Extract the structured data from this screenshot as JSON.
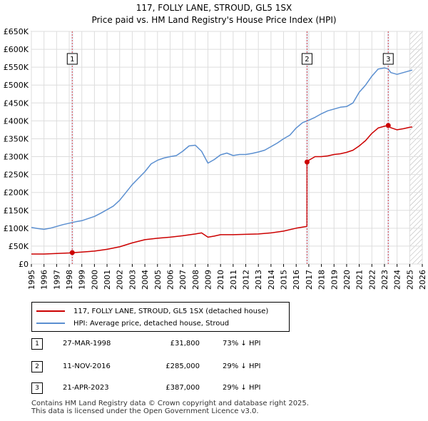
{
  "title": "117, FOLLY LANE, STROUD, GL5 1SX",
  "subtitle": "Price paid vs. HM Land Registry's House Price Index (HPI)",
  "colors": {
    "price": "#cc0000",
    "hpi": "#5b8fd0",
    "band": "#e6ecf7",
    "grid": "#dddddd"
  },
  "legend": [
    {
      "label": "117, FOLLY LANE, STROUD, GL5 1SX (detached house)",
      "color": "#cc0000"
    },
    {
      "label": "HPI: Average price, detached house, Stroud",
      "color": "#5b8fd0"
    }
  ],
  "sales": [
    {
      "num": "1",
      "date": "27-MAR-1998",
      "price": "£31,800",
      "hpi": "73% ↓ HPI"
    },
    {
      "num": "2",
      "date": "11-NOV-2016",
      "price": "£285,000",
      "hpi": "29% ↓ HPI"
    },
    {
      "num": "3",
      "date": "21-APR-2023",
      "price": "£387,000",
      "hpi": "29% ↓ HPI"
    }
  ],
  "footer": {
    "line1": "Contains HM Land Registry data © Crown copyright and database right 2025.",
    "line2": "This data is licensed under the Open Government Licence v3.0."
  },
  "chart_data": {
    "type": "line",
    "title": "Price paid vs. HM Land Registry's House Price Index (HPI)",
    "xlim": [
      1995,
      2026
    ],
    "ylim": [
      0,
      650000
    ],
    "y_ticks": [
      0,
      50000,
      100000,
      150000,
      200000,
      250000,
      300000,
      350000,
      400000,
      450000,
      500000,
      550000,
      600000,
      650000
    ],
    "y_tick_labels": [
      "£0",
      "£50K",
      "£100K",
      "£150K",
      "£200K",
      "£250K",
      "£300K",
      "£350K",
      "£400K",
      "£450K",
      "£500K",
      "£550K",
      "£600K",
      "£650K"
    ],
    "x_ticks": [
      1995,
      1996,
      1997,
      1998,
      1999,
      2000,
      2001,
      2002,
      2003,
      2004,
      2005,
      2006,
      2007,
      2008,
      2009,
      2010,
      2011,
      2012,
      2013,
      2014,
      2015,
      2016,
      2017,
      2018,
      2019,
      2020,
      2021,
      2022,
      2023,
      2024,
      2025,
      2026
    ],
    "x_tick_labels": [
      "1995",
      "1996",
      "1997",
      "1998",
      "1999",
      "2000",
      "2001",
      "2002",
      "2003",
      "2004",
      "2005",
      "2006",
      "2007",
      "2008",
      "2009",
      "2010",
      "2011",
      "2012",
      "2013",
      "2014",
      "2015",
      "2016",
      "2017",
      "2018",
      "2019",
      "2020",
      "2021",
      "2022",
      "2023",
      "2024",
      "2025",
      "2026"
    ],
    "hatch_from": 2025.0,
    "series": [
      {
        "name": "HPI: Average price, detached house, Stroud",
        "color": "#5b8fd0",
        "points": [
          [
            1995.0,
            102000
          ],
          [
            1995.5,
            99000
          ],
          [
            1996.0,
            97000
          ],
          [
            1996.5,
            100000
          ],
          [
            1997.0,
            105000
          ],
          [
            1997.5,
            110000
          ],
          [
            1998.0,
            114000
          ],
          [
            1998.5,
            118000
          ],
          [
            1999.0,
            121000
          ],
          [
            1999.5,
            127000
          ],
          [
            2000.0,
            133000
          ],
          [
            2000.5,
            142000
          ],
          [
            2001.0,
            152000
          ],
          [
            2001.5,
            162000
          ],
          [
            2002.0,
            178000
          ],
          [
            2002.5,
            200000
          ],
          [
            2003.0,
            222000
          ],
          [
            2003.5,
            240000
          ],
          [
            2004.0,
            258000
          ],
          [
            2004.5,
            280000
          ],
          [
            2005.0,
            290000
          ],
          [
            2005.5,
            296000
          ],
          [
            2006.0,
            300000
          ],
          [
            2006.5,
            303000
          ],
          [
            2007.0,
            315000
          ],
          [
            2007.5,
            330000
          ],
          [
            2008.0,
            332000
          ],
          [
            2008.5,
            315000
          ],
          [
            2009.0,
            282000
          ],
          [
            2009.5,
            292000
          ],
          [
            2010.0,
            305000
          ],
          [
            2010.5,
            310000
          ],
          [
            2011.0,
            303000
          ],
          [
            2011.5,
            306000
          ],
          [
            2012.0,
            306000
          ],
          [
            2012.5,
            309000
          ],
          [
            2013.0,
            313000
          ],
          [
            2013.5,
            318000
          ],
          [
            2014.0,
            328000
          ],
          [
            2014.5,
            338000
          ],
          [
            2015.0,
            350000
          ],
          [
            2015.5,
            360000
          ],
          [
            2016.0,
            380000
          ],
          [
            2016.5,
            395000
          ],
          [
            2016.86,
            400000
          ],
          [
            2017.0,
            402000
          ],
          [
            2017.5,
            410000
          ],
          [
            2018.0,
            420000
          ],
          [
            2018.5,
            428000
          ],
          [
            2019.0,
            433000
          ],
          [
            2019.5,
            438000
          ],
          [
            2020.0,
            440000
          ],
          [
            2020.5,
            450000
          ],
          [
            2021.0,
            480000
          ],
          [
            2021.5,
            500000
          ],
          [
            2022.0,
            525000
          ],
          [
            2022.5,
            545000
          ],
          [
            2023.0,
            548000
          ],
          [
            2023.3,
            545000
          ],
          [
            2023.5,
            535000
          ],
          [
            2024.0,
            530000
          ],
          [
            2024.5,
            535000
          ],
          [
            2025.0,
            540000
          ],
          [
            2025.2,
            542000
          ]
        ]
      },
      {
        "name": "117, FOLLY LANE, STROUD, GL5 1SX (detached house)",
        "color": "#cc0000",
        "points": [
          [
            1995.0,
            28000
          ],
          [
            1996.0,
            28000
          ],
          [
            1997.0,
            29500
          ],
          [
            1998.0,
            31000
          ],
          [
            1998.24,
            31800
          ],
          [
            1999.0,
            33500
          ],
          [
            2000.0,
            36000
          ],
          [
            2001.0,
            41000
          ],
          [
            2002.0,
            48000
          ],
          [
            2003.0,
            59000
          ],
          [
            2004.0,
            68000
          ],
          [
            2005.0,
            72000
          ],
          [
            2006.0,
            75000
          ],
          [
            2007.0,
            79000
          ],
          [
            2008.0,
            84000
          ],
          [
            2008.5,
            87000
          ],
          [
            2009.0,
            75000
          ],
          [
            2009.5,
            78000
          ],
          [
            2010.0,
            82000
          ],
          [
            2011.0,
            82000
          ],
          [
            2012.0,
            83000
          ],
          [
            2013.0,
            84000
          ],
          [
            2014.0,
            87000
          ],
          [
            2015.0,
            92000
          ],
          [
            2016.0,
            100000
          ],
          [
            2016.85,
            105000
          ],
          [
            2016.86,
            285000
          ],
          [
            2017.0,
            290000
          ],
          [
            2017.5,
            300000
          ],
          [
            2018.0,
            300000
          ],
          [
            2018.5,
            302000
          ],
          [
            2019.0,
            306000
          ],
          [
            2019.5,
            308000
          ],
          [
            2020.0,
            312000
          ],
          [
            2020.5,
            318000
          ],
          [
            2021.0,
            330000
          ],
          [
            2021.5,
            345000
          ],
          [
            2022.0,
            365000
          ],
          [
            2022.5,
            380000
          ],
          [
            2023.0,
            385000
          ],
          [
            2023.3,
            387000
          ],
          [
            2023.5,
            381000
          ],
          [
            2024.0,
            375000
          ],
          [
            2024.5,
            378000
          ],
          [
            2025.0,
            382000
          ],
          [
            2025.2,
            383000
          ]
        ]
      }
    ],
    "sale_markers": [
      {
        "label": "1",
        "x": 1998.24,
        "y": 31800
      },
      {
        "label": "2",
        "x": 2016.86,
        "y": 285000
      },
      {
        "label": "3",
        "x": 2023.3,
        "y": 387000
      }
    ]
  }
}
